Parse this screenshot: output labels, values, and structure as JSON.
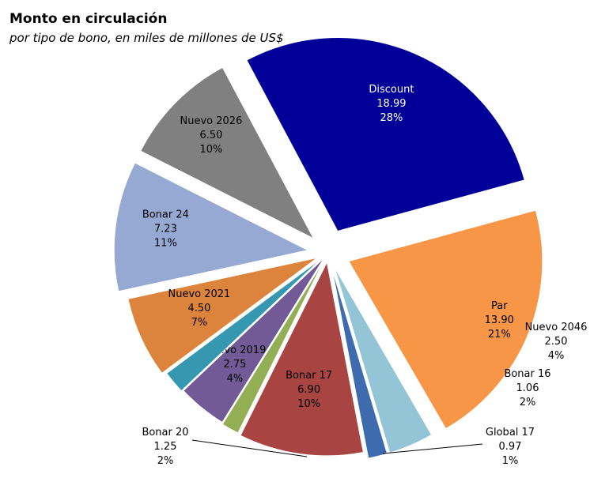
{
  "chart_data": {
    "type": "pie",
    "title": "Monto en circulación",
    "subtitle": "por tipo de bono, en miles de millones de US$",
    "slices": [
      {
        "name": "Discount",
        "value": 18.99,
        "value_label": "18.99",
        "percent": "28%",
        "color": "#000099"
      },
      {
        "name": "Par",
        "value": 13.9,
        "value_label": "13.90",
        "percent": "21%",
        "color": "#F79646"
      },
      {
        "name": "Nuevo 2046",
        "value": 2.5,
        "value_label": "2.50",
        "percent": "4%",
        "color": "#93C5D7"
      },
      {
        "name": "Bonar 16",
        "value": 1.06,
        "value_label": "1.06",
        "percent": "2%",
        "color": "#3E6BAE"
      },
      {
        "name": "Bonar 17",
        "value": 6.9,
        "value_label": "6.90",
        "percent": "10%",
        "color": "#A84442"
      },
      {
        "name": "Global 17",
        "value": 0.97,
        "value_label": "0.97",
        "percent": "1%",
        "color": "#93AF55"
      },
      {
        "name": "Nuevo 2019",
        "value": 2.75,
        "value_label": "2.75",
        "percent": "4%",
        "color": "#725A97"
      },
      {
        "name": "Bonar 20",
        "value": 1.25,
        "value_label": "1.25",
        "percent": "2%",
        "color": "#3698B0"
      },
      {
        "name": "Nuevo 2021",
        "value": 4.5,
        "value_label": "4.50",
        "percent": "7%",
        "color": "#DD843C"
      },
      {
        "name": "Bonar 24",
        "value": 7.23,
        "value_label": "7.23",
        "percent": "11%",
        "color": "#95A9D3"
      },
      {
        "name": "Nuevo 2026",
        "value": 6.5,
        "value_label": "6.50",
        "percent": "10%",
        "color": "#808080"
      }
    ]
  }
}
